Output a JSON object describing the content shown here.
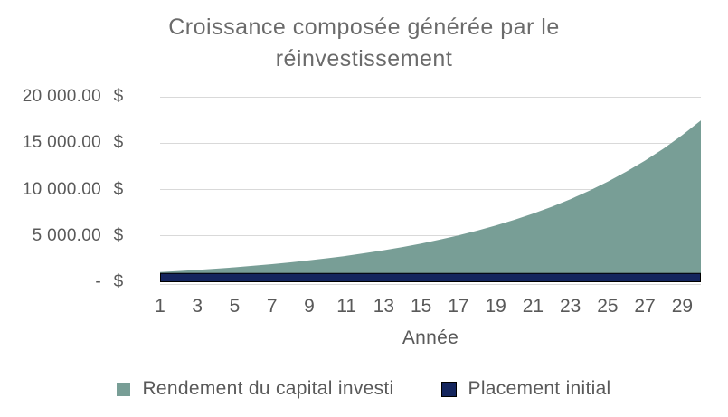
{
  "title": {
    "line1": "Croissance composée générée par le",
    "line2": "réinvestissement"
  },
  "colors": {
    "title_text": "#6B6B6B",
    "axis_text": "#595959",
    "gridline": "#D9D9D9",
    "area_green": "#789E96",
    "area_navy": "#14255D",
    "navy_border": "#000000",
    "background": "#FFFFFF"
  },
  "chart_data": {
    "type": "area",
    "stacked": true,
    "title": "Croissance composée générée par le réinvestissement",
    "xlabel": "Année",
    "ylabel": "",
    "ylim": [
      0,
      20000
    ],
    "grid": true,
    "legend_position": "bottom",
    "x": [
      1,
      2,
      3,
      4,
      5,
      6,
      7,
      8,
      9,
      10,
      11,
      12,
      13,
      14,
      15,
      16,
      17,
      18,
      19,
      20,
      21,
      22,
      23,
      24,
      25,
      26,
      27,
      28,
      29,
      30
    ],
    "x_ticks": [
      1,
      3,
      5,
      7,
      9,
      11,
      13,
      15,
      17,
      19,
      21,
      23,
      25,
      27,
      29
    ],
    "y_ticks": [
      {
        "value": 20000,
        "label": "20 000.00"
      },
      {
        "value": 15000,
        "label": "15 000.00"
      },
      {
        "value": 10000,
        "label": "10 000.00"
      },
      {
        "value": 5000,
        "label": "5 000.00"
      },
      {
        "value": 0,
        "label": "-"
      }
    ],
    "currency": "$",
    "series": [
      {
        "name": "Rendement du capital investi",
        "color": "#789E96",
        "values": [
          100.0,
          210.0,
          331.0,
          464.1,
          610.51,
          771.56,
          948.72,
          1143.59,
          1357.95,
          1593.74,
          1853.12,
          2138.43,
          2452.27,
          2797.5,
          3177.25,
          3594.97,
          4054.47,
          4559.92,
          5115.91,
          5727.5,
          6400.25,
          7140.27,
          7954.3,
          8849.73,
          9834.71,
          10918.18,
          12109.99,
          13420.99,
          14863.09,
          16449.4
        ]
      },
      {
        "name": "Placement initial",
        "color": "#14255D",
        "border_color": "#000000",
        "values": [
          1000,
          1000,
          1000,
          1000,
          1000,
          1000,
          1000,
          1000,
          1000,
          1000,
          1000,
          1000,
          1000,
          1000,
          1000,
          1000,
          1000,
          1000,
          1000,
          1000,
          1000,
          1000,
          1000,
          1000,
          1000,
          1000,
          1000,
          1000,
          1000,
          1000
        ]
      }
    ]
  }
}
